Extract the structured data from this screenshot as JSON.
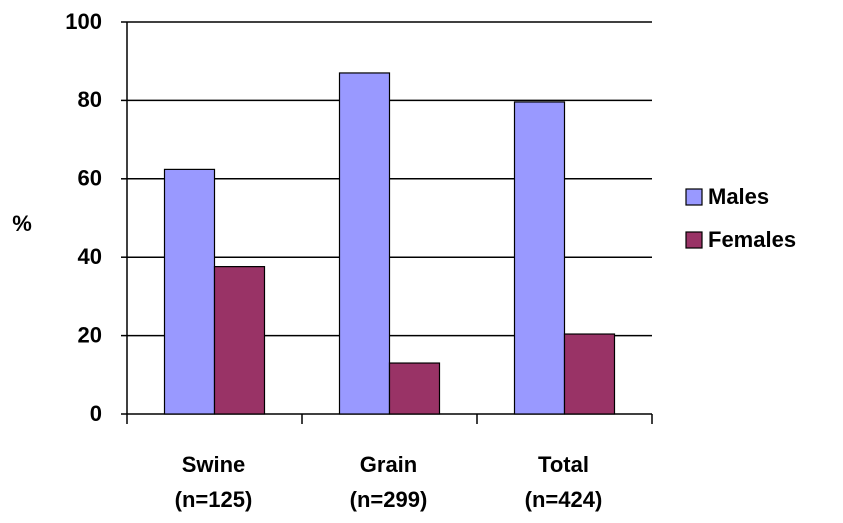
{
  "chart_data": {
    "type": "bar",
    "y_label": "%",
    "categories": [
      "Swine (n=125)",
      "Grain (n=299)",
      "Total (n=424)"
    ],
    "series": [
      {
        "name": "Males",
        "color": "#9999ff",
        "values": [
          62.4,
          87,
          79.6
        ]
      },
      {
        "name": "Females",
        "color": "#993366",
        "values": [
          37.6,
          13,
          20.4
        ]
      }
    ],
    "ylim": [
      0,
      100
    ],
    "yticks": [
      0,
      20,
      40,
      60,
      80,
      100
    ],
    "grid": true,
    "legend": "right"
  }
}
